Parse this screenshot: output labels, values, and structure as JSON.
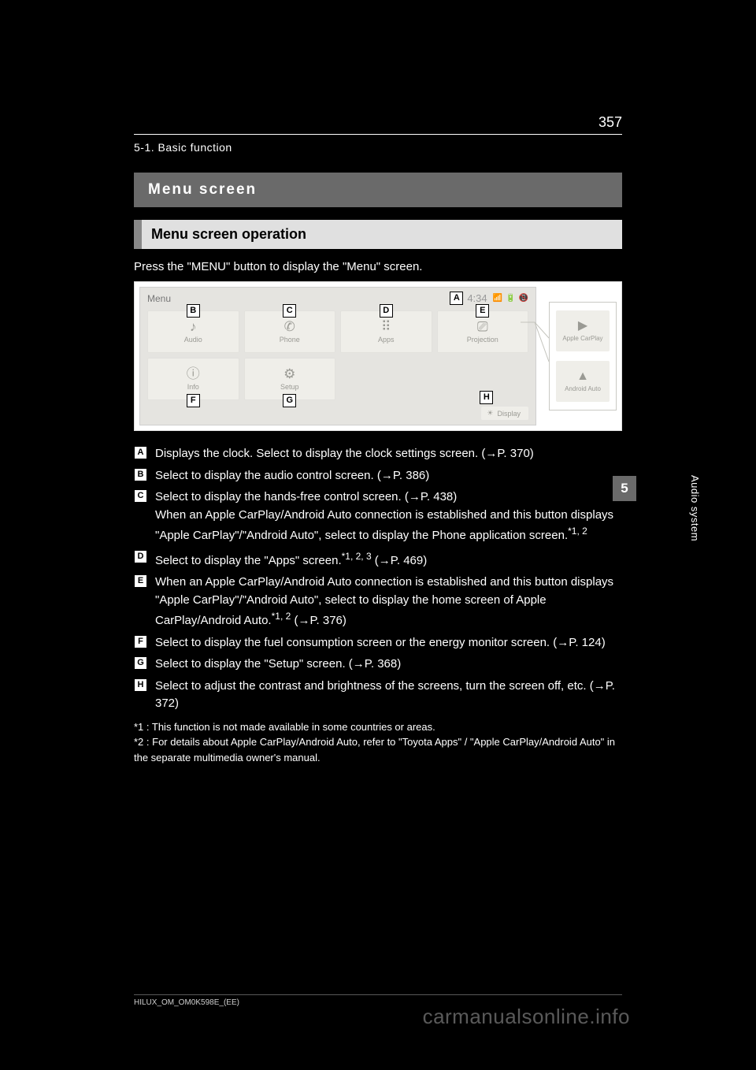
{
  "page_number": "357",
  "breadcrumb": "5-1. Basic function",
  "title": "Menu screen",
  "subtitle": "Menu screen operation",
  "instruction": "Press the \"MENU\" button to display the \"Menu\" screen.",
  "side_tab": "5",
  "side_caption": "Audio system",
  "screen": {
    "header_label": "Menu",
    "clock": "4:34",
    "clock_marker": "A",
    "status_icons": [
      "📶",
      "🔋",
      "📵"
    ],
    "tiles": [
      {
        "label": "Audio",
        "icon": "♪",
        "marker": "B"
      },
      {
        "label": "Phone",
        "icon": "✆",
        "marker": "C"
      },
      {
        "label": "Apps",
        "icon": "⠿",
        "marker": "D"
      },
      {
        "label": "Projection",
        "icon": "⎚",
        "marker": "E"
      },
      {
        "label": "Info",
        "icon": "ⓘ",
        "marker": "F"
      },
      {
        "label": "Setup",
        "icon": "⚙",
        "marker": "G"
      }
    ],
    "display_btn": {
      "label": "Display",
      "icon": "☀",
      "marker": "H"
    },
    "callout": [
      {
        "label": "Apple CarPlay",
        "icon": "▶"
      },
      {
        "label": "Android Auto",
        "icon": "▲"
      }
    ]
  },
  "legend": [
    {
      "k": "A",
      "text": "Displays the clock. Select to display the clock settings screen.",
      "line2": "",
      "ref": "(→P. 370)"
    },
    {
      "k": "B",
      "text": "Select to display the audio control screen.",
      "ref": "(→P. 386)"
    },
    {
      "k": "C",
      "text": "Select to display the hands-free control screen.",
      "ref": "(→P. 438)",
      "line2": "When an Apple CarPlay/Android Auto connection is established and this button displays \"Apple CarPlay\"/\"Android Auto\", select to display the Phone application screen.",
      "star": "*1, 2"
    },
    {
      "k": "D",
      "text": "Select to display the \"Apps\" screen.",
      "star": "*1, 2, 3",
      "ref": "(→P. 469)"
    },
    {
      "k": "E",
      "text": "When an Apple CarPlay/Android Auto connection is established and this button displays \"Apple CarPlay\"/\"Android Auto\", select to display the home screen of Apple CarPlay/Android Auto.",
      "star": "*1, 2",
      "ref": "(→P. 376)"
    },
    {
      "k": "F",
      "text": "Select to display the fuel consumption screen or the energy monitor screen.",
      "ref": "(→P. 124)"
    },
    {
      "k": "G",
      "text": "Select to display the \"Setup\" screen.",
      "ref": "(→P. 368)"
    },
    {
      "k": "H",
      "text": "Select to adjust the contrast and brightness of the screens, turn the screen off, etc.",
      "ref": "(→P. 372)"
    }
  ],
  "footnotes": [
    "*1 : This function is not made available in some countries or areas.",
    "*2 : For details about Apple CarPlay/Android Auto, refer to \"Toyota Apps\" / \"Apple CarPlay/Android Auto\" in the separate multimedia owner's manual."
  ],
  "footer_code": "HILUX_OM_OM0K598E_(EE)",
  "watermark": "carmanualsonline.info"
}
